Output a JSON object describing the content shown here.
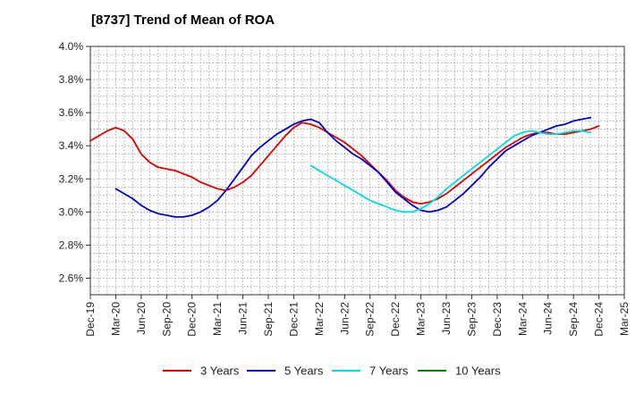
{
  "chart_data": {
    "type": "line",
    "title": "[8737]  Trend of Mean of ROA",
    "xlabel": "",
    "ylabel": "",
    "ylim": [
      2.5,
      4.0
    ],
    "y_ticks": [
      2.6,
      2.8,
      3.0,
      3.2,
      3.4,
      3.6,
      3.8,
      4.0
    ],
    "y_tick_labels": [
      "2.6%",
      "2.8%",
      "3.0%",
      "3.2%",
      "3.4%",
      "3.6%",
      "3.8%",
      "4.0%"
    ],
    "x_start": "Dec-19",
    "x_end": "Mar-25",
    "x_tick_labels": [
      "Dec-19",
      "Mar-20",
      "Jun-20",
      "Sep-20",
      "Dec-20",
      "Mar-21",
      "Jun-21",
      "Sep-21",
      "Dec-21",
      "Mar-22",
      "Jun-22",
      "Sep-22",
      "Dec-22",
      "Mar-23",
      "Jun-23",
      "Sep-23",
      "Dec-23",
      "Mar-24",
      "Jun-24",
      "Sep-24",
      "Dec-24",
      "Mar-25"
    ],
    "grid": true,
    "legend_position": "bottom",
    "series": [
      {
        "name": "3 Years",
        "color": "#dd0000",
        "start": "Dec-19",
        "values": [
          3.43,
          3.46,
          3.49,
          3.51,
          3.49,
          3.44,
          3.35,
          3.3,
          3.27,
          3.26,
          3.25,
          3.23,
          3.21,
          3.18,
          3.16,
          3.14,
          3.13,
          3.15,
          3.18,
          3.22,
          3.28,
          3.34,
          3.4,
          3.46,
          3.51,
          3.54,
          3.53,
          3.51,
          3.48,
          3.45,
          3.42,
          3.38,
          3.34,
          3.29,
          3.24,
          3.19,
          3.13,
          3.09,
          3.06,
          3.05,
          3.06,
          3.08,
          3.11,
          3.15,
          3.19,
          3.23,
          3.27,
          3.31,
          3.35,
          3.39,
          3.42,
          3.45,
          3.47,
          3.48,
          3.48,
          3.47,
          3.47,
          3.48,
          3.49,
          3.5,
          3.52
        ]
      },
      {
        "name": "5 Years",
        "color": "#0000cc",
        "start": "Dec-19",
        "values": [
          null,
          null,
          null,
          3.14,
          3.11,
          3.08,
          3.04,
          3.01,
          2.99,
          2.98,
          2.97,
          2.97,
          2.98,
          3.0,
          3.03,
          3.07,
          3.13,
          3.2,
          3.27,
          3.34,
          3.39,
          3.43,
          3.47,
          3.5,
          3.53,
          3.55,
          3.56,
          3.54,
          3.48,
          3.43,
          3.39,
          3.35,
          3.32,
          3.28,
          3.24,
          3.18,
          3.12,
          3.08,
          3.04,
          3.01,
          3.0,
          3.01,
          3.03,
          3.07,
          3.11,
          3.16,
          3.21,
          3.27,
          3.32,
          3.37,
          3.4,
          3.43,
          3.46,
          3.48,
          3.5,
          3.52,
          3.53,
          3.55,
          3.56,
          3.57
        ]
      },
      {
        "name": "7 Years",
        "color": "#00dddd",
        "start": "Dec-19",
        "values": [
          null,
          null,
          null,
          null,
          null,
          null,
          null,
          null,
          null,
          null,
          null,
          null,
          null,
          null,
          null,
          null,
          null,
          null,
          null,
          null,
          null,
          null,
          null,
          null,
          null,
          null,
          3.28,
          3.25,
          3.22,
          3.19,
          3.16,
          3.13,
          3.1,
          3.07,
          3.05,
          3.03,
          3.01,
          3.0,
          3.0,
          3.02,
          3.05,
          3.09,
          3.14,
          3.18,
          3.22,
          3.26,
          3.3,
          3.34,
          3.38,
          3.42,
          3.46,
          3.48,
          3.49,
          3.48,
          3.47,
          3.47,
          3.48,
          3.49,
          3.49,
          3.48
        ]
      },
      {
        "name": "10 Years",
        "color": "#008000",
        "start": "Dec-19",
        "values": []
      }
    ]
  }
}
